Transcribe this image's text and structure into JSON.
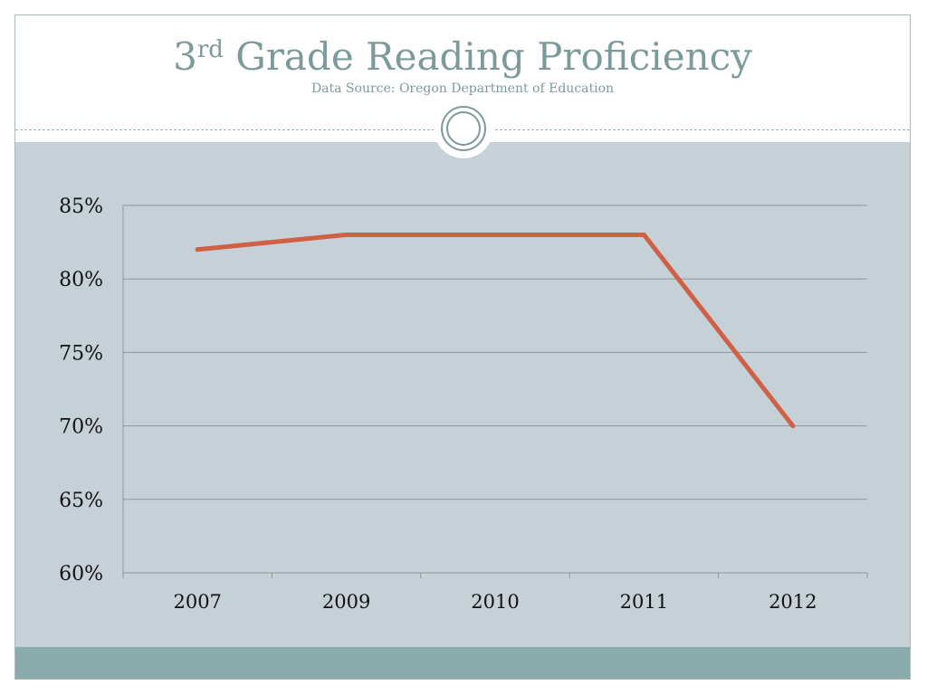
{
  "slide": {
    "title_main": "Grade Reading Proficiency",
    "title_number": "3",
    "title_superscript": "rd",
    "subtitle": "Data Source: Oregon Department of Education"
  },
  "colors": {
    "title": "#7d9a9b",
    "content_background": "#c6d1d7",
    "footer_bar": "#8aabab",
    "series_line": "#cf5f45",
    "gridline": "#8c969b"
  },
  "chart_data": {
    "type": "line",
    "title": "3rd Grade Reading Proficiency",
    "subtitle": "Data Source: Oregon Department of Education",
    "categories": [
      "2007",
      "2009",
      "2010",
      "2011",
      "2012"
    ],
    "series": [
      {
        "values": [
          82,
          83,
          83,
          83,
          70
        ],
        "color": "#cf5f45"
      }
    ],
    "ylim": [
      60,
      85
    ],
    "yticks": [
      60,
      65,
      70,
      75,
      80,
      85
    ],
    "ytick_labels": [
      "60%",
      "65%",
      "70%",
      "75%",
      "80%",
      "85%"
    ],
    "grid": true,
    "legend": "none",
    "xlabel": "",
    "ylabel": ""
  }
}
